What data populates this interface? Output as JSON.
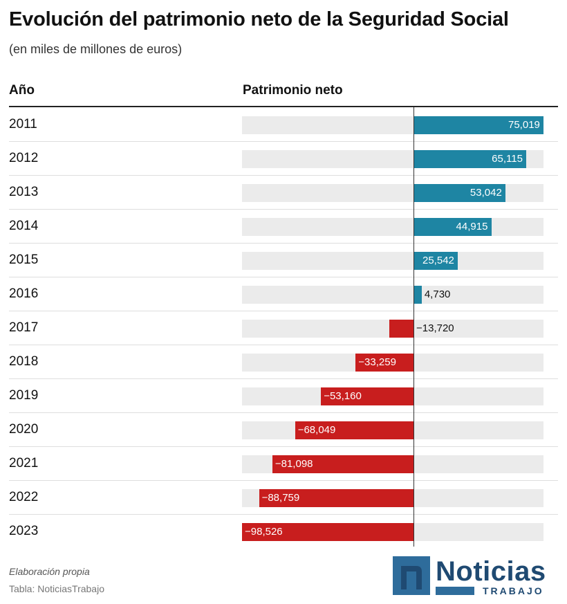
{
  "title": "Evolución del patrimonio neto de la Seguridad Social",
  "subtitle": "(en miles de millones de euros)",
  "columns": {
    "year": "Año",
    "value": "Patrimonio neto"
  },
  "colors": {
    "positive": "#1e85a3",
    "negative": "#c81e1e",
    "track": "#ebebeb"
  },
  "chart_data": {
    "type": "bar",
    "orientation": "horizontal",
    "title": "Evolución del patrimonio neto de la Seguridad Social",
    "subtitle": "(en miles de millones de euros)",
    "xlabel": "Patrimonio neto",
    "ylabel": "Año",
    "xlim": [
      -98.526,
      75.019
    ],
    "categories": [
      "2011",
      "2012",
      "2013",
      "2014",
      "2015",
      "2016",
      "2017",
      "2018",
      "2019",
      "2020",
      "2021",
      "2022",
      "2023"
    ],
    "values": [
      75.019,
      65.115,
      53.042,
      44.915,
      25.542,
      4.73,
      -13.72,
      -33.259,
      -53.16,
      -68.049,
      -81.098,
      -88.759,
      -98.526
    ],
    "labels": [
      "75,019",
      "65,115",
      "53,042",
      "44,915",
      "25,542",
      "4,730",
      "−13,720",
      "−33,259",
      "−53,160",
      "−68,049",
      "−81,098",
      "−88,759",
      "−98,526"
    ]
  },
  "footer": {
    "source": "Elaboración propia",
    "table_credit": "Tabla: NoticiasTrabajo"
  },
  "logo": {
    "icon_letter": "n",
    "name": "Noticias",
    "sub": "TRABAJO"
  }
}
